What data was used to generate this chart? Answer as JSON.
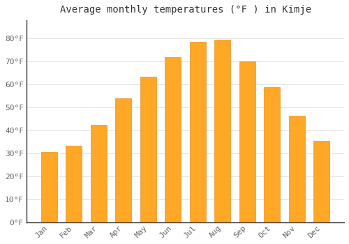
{
  "title": "Average monthly temperatures (°F ) in Kimje",
  "months": [
    "Jan",
    "Feb",
    "Mar",
    "Apr",
    "May",
    "Jun",
    "Jul",
    "Aug",
    "Sep",
    "Oct",
    "Nov",
    "Dec"
  ],
  "values": [
    30.5,
    33.5,
    42.5,
    54.0,
    63.5,
    72.0,
    78.5,
    79.5,
    70.0,
    59.0,
    46.5,
    35.5
  ],
  "bar_color": "#FFA726",
  "bar_edge_color": "#E69520",
  "background_color": "#FFFFFF",
  "grid_color": "#DDDDDD",
  "ylim": [
    0,
    88
  ],
  "yticks": [
    0,
    10,
    20,
    30,
    40,
    50,
    60,
    70,
    80
  ],
  "ytick_labels": [
    "0°F",
    "10°F",
    "20°F",
    "30°F",
    "40°F",
    "50°F",
    "60°F",
    "70°F",
    "80°F"
  ],
  "title_fontsize": 10,
  "tick_fontsize": 8,
  "font_family": "monospace",
  "tick_color": "#666666",
  "spine_color": "#333333"
}
